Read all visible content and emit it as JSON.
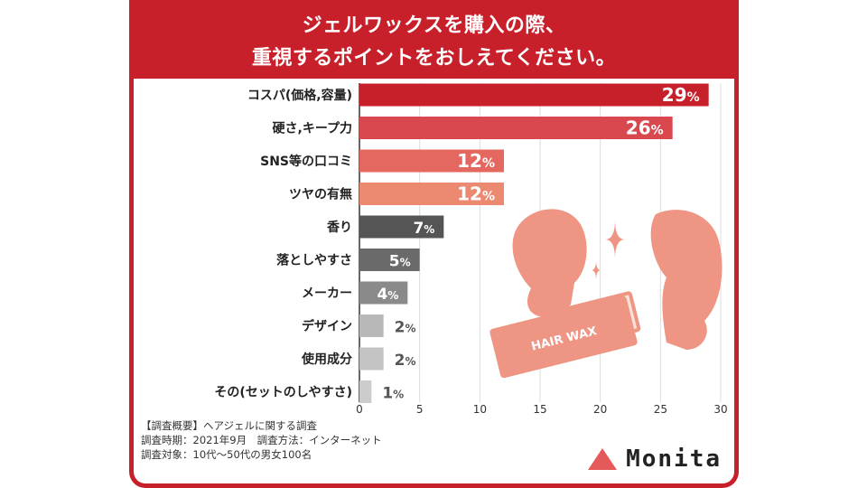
{
  "title": {
    "line1": "ジェルワックスを購入の際、",
    "line2": "重視するポイントをおしえてください。"
  },
  "chart_data": {
    "type": "bar",
    "orientation": "horizontal",
    "categories": [
      "コスパ(価格,容量)",
      "硬さ,キープ力",
      "SNS等の口コミ",
      "ツヤの有無",
      "香り",
      "落としやすさ",
      "メーカー",
      "デザイン",
      "使用成分",
      "その(セットのしやすさ)"
    ],
    "values": [
      29,
      26,
      12,
      12,
      7,
      5,
      4,
      2,
      2,
      1
    ],
    "value_suffix": "%",
    "bar_colors": [
      "#c8202b",
      "#d9484f",
      "#e4685f",
      "#eb8a71",
      "#555555",
      "#6a6a6a",
      "#8a8a8a",
      "#b8b8b8",
      "#c3c3c3",
      "#cccccc"
    ],
    "xlim": [
      0,
      30
    ],
    "xticks": [
      0,
      5,
      10,
      15,
      20,
      25,
      30
    ],
    "grid": true
  },
  "illustration": {
    "label": "HAIR WAX",
    "color": "#ee9583"
  },
  "notes": {
    "line1": "【調査概要】ヘアジェルに関する調査",
    "line2": "調査時期：2021年9月　調査方法：インターネット",
    "line3": "調査対象：10代〜50代の男女100名"
  },
  "logo": {
    "text": "Monita",
    "color": "#e4595a"
  }
}
